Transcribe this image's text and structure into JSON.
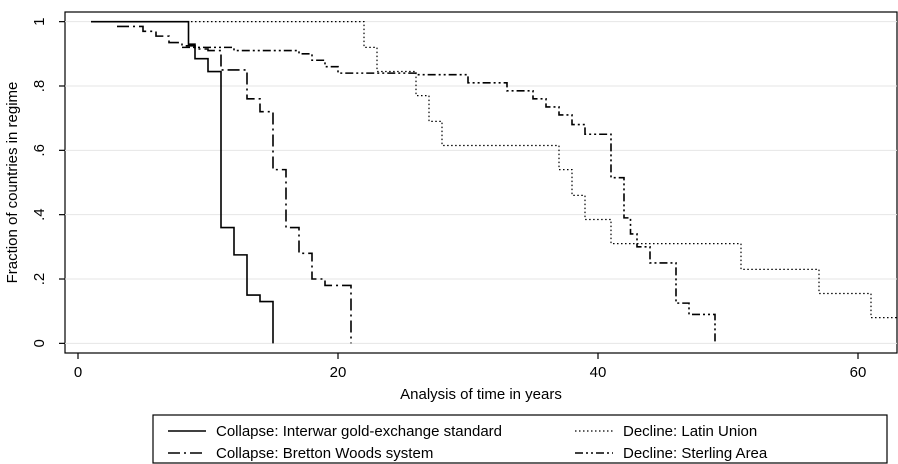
{
  "chart_data": {
    "type": "line",
    "step": true,
    "title": "",
    "xlabel": "Analysis of time in years",
    "ylabel": "Fraction of countries in regime",
    "xlim": [
      -1,
      63
    ],
    "ylim": [
      -0.03,
      1.03
    ],
    "xticks": [
      0,
      20,
      40,
      60
    ],
    "xtick_labels": [
      "0",
      "20",
      "40",
      "60"
    ],
    "yticks": [
      0,
      0.2,
      0.4,
      0.6,
      0.8,
      1
    ],
    "ytick_labels": [
      "0",
      ".2",
      ".4",
      ".6",
      ".8",
      "1"
    ],
    "legend_position": "bottom",
    "series": [
      {
        "name": "Collapse: Interwar gold-exchange standard",
        "style": "solid",
        "x": [
          1,
          8,
          8.5,
          9,
          10,
          11,
          12,
          13,
          14,
          15,
          15
        ],
        "y": [
          1,
          1,
          0.93,
          0.885,
          0.845,
          0.36,
          0.275,
          0.15,
          0.13,
          0.09,
          0
        ]
      },
      {
        "name": "Collapse: Bretton Woods system",
        "style": "longdash-dot",
        "x": [
          3,
          5,
          6,
          7,
          8,
          9,
          10,
          11,
          13,
          14,
          15,
          16,
          17,
          18,
          19,
          21,
          21
        ],
        "y": [
          0.985,
          0.97,
          0.955,
          0.935,
          0.925,
          0.915,
          0.91,
          0.85,
          0.76,
          0.72,
          0.54,
          0.36,
          0.28,
          0.2,
          0.18,
          0.18,
          0
        ]
      },
      {
        "name": "Decline: Latin Union",
        "style": "dotted",
        "x": [
          1,
          22,
          23,
          26,
          27,
          28,
          29,
          37,
          38,
          39,
          40,
          41,
          42,
          51,
          57,
          61,
          63
        ],
        "y": [
          1,
          0.92,
          0.845,
          0.77,
          0.69,
          0.615,
          0.615,
          0.54,
          0.46,
          0.385,
          0.385,
          0.31,
          0.31,
          0.23,
          0.155,
          0.08,
          0.08
        ]
      },
      {
        "name": "Decline: Sterling Area",
        "style": "dash-dot-dot",
        "x": [
          8,
          12,
          17,
          18,
          19,
          20,
          26,
          30,
          33,
          35,
          36,
          37,
          38,
          39,
          41,
          42,
          42.5,
          43,
          44,
          46,
          47,
          49,
          49
        ],
        "y": [
          0.92,
          0.91,
          0.9,
          0.88,
          0.86,
          0.84,
          0.835,
          0.81,
          0.785,
          0.76,
          0.735,
          0.71,
          0.68,
          0.65,
          0.515,
          0.39,
          0.34,
          0.3,
          0.25,
          0.125,
          0.09,
          0.09,
          0
        ]
      }
    ]
  }
}
